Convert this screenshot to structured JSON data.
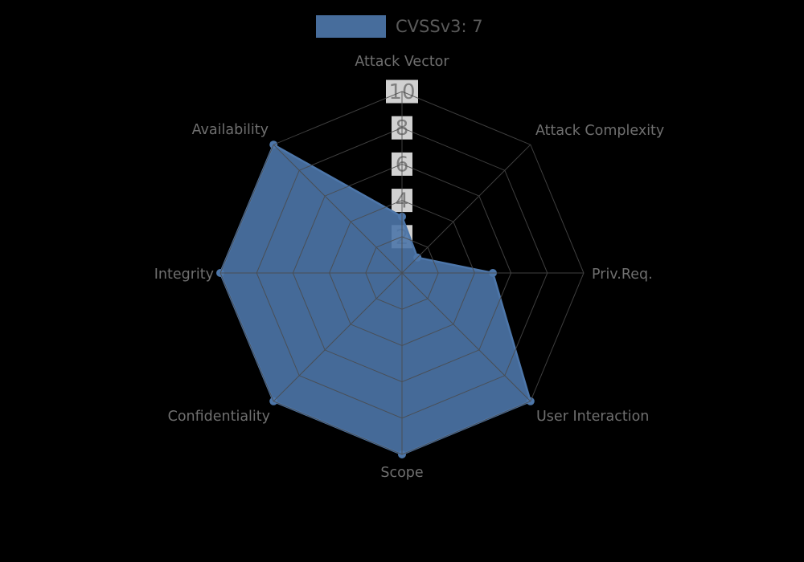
{
  "chart_data": {
    "type": "radar",
    "title": "CVSSv3: 7",
    "legend": {
      "label": "CVSSv3: 7",
      "position": "top-center"
    },
    "categories": [
      "Attack Vector",
      "Attack Complexity",
      "Priv.Req.",
      "User Interaction",
      "Scope",
      "Confidentiality",
      "Integrity",
      "Availability"
    ],
    "series": [
      {
        "name": "CVSSv3: 7",
        "values": [
          3.1,
          1.2,
          5,
          10,
          10,
          10,
          10,
          10
        ]
      }
    ],
    "rmin": 0,
    "rmax": 10,
    "ticks": [
      2,
      4,
      6,
      8,
      10
    ],
    "grid": true,
    "colors": {
      "background": "#000000",
      "fill": "#4d76a9",
      "stroke": "#4d76a9",
      "marker": "#4d76a9",
      "grid": "#4a4a4a",
      "axis_label": "#6f6f6f",
      "tick_label": "#7f7f7f",
      "tick_box": "#ffffff",
      "legend_text": "#5a5a5a"
    }
  }
}
